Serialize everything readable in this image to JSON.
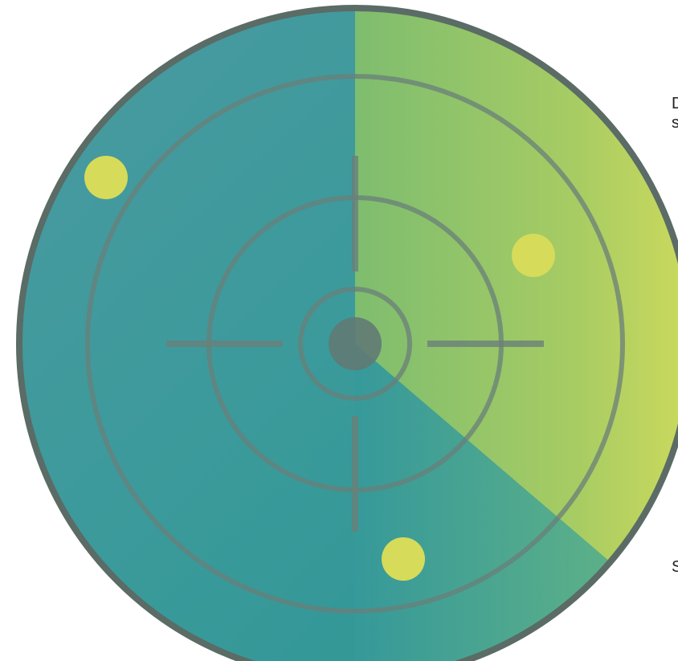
{
  "colors": {
    "blue_teal": "#3a8fa5",
    "teal": "#2d9696",
    "green": "#8cc46b",
    "lime": "#d3dc5d",
    "outline": "#5b6b66",
    "blip": "#d6db5a",
    "center_hub": "#607a74"
  },
  "icons": {
    "radar": "radar-icon",
    "blip": "blip-icon"
  },
  "radar": {
    "blips": 3
  },
  "edge_text": {
    "line1": "D",
    "line2": "s",
    "line3": "S"
  }
}
